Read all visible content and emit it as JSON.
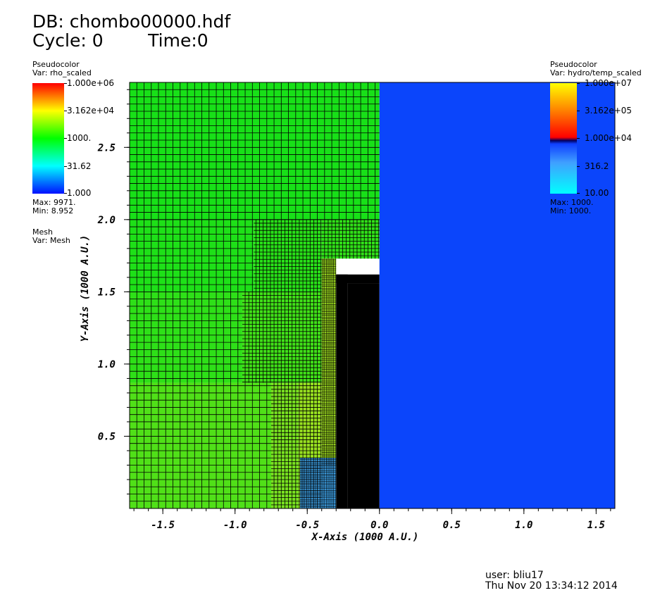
{
  "header": {
    "db_line": "DB: chombo00000.hdf",
    "cycle_line": "Cycle: 0        Time:0"
  },
  "legend_left": {
    "kind": "Pseudocolor",
    "var": "Var: rho_scaled",
    "ticks": [
      "1.000e+06",
      "3.162e+04",
      "1000.",
      "31.62",
      "1.000"
    ],
    "max": "Max: 9971.",
    "min": "Min: 8.952",
    "mesh_kind": "Mesh",
    "mesh_var": "Var: Mesh"
  },
  "legend_right": {
    "kind": "Pseudocolor",
    "var": "Var: hydro/temp_scaled",
    "ticks": [
      "1.000e+07",
      "3.162e+05",
      "1.000e+04",
      "316.2",
      "10.00"
    ],
    "max": "Max: 1000.",
    "min": "Min: 1000."
  },
  "colors": {
    "right_field": "#0b45fb",
    "mesh_line": "#000000",
    "green_top": "#18e018",
    "green_low": "#78e020",
    "yellow_green": "#a8e020",
    "cyan_blue": "#40a8f0"
  },
  "chart_data": {
    "type": "heatmap",
    "x_axis": {
      "title": "X-Axis (1000 A.U.)",
      "range": [
        -1.73,
        1.63
      ],
      "ticks": [
        -1.5,
        -1.0,
        -0.5,
        0.0,
        0.5,
        1.0,
        1.5
      ],
      "tick_labels": [
        "-1.5",
        "-1.0",
        "-0.5",
        "0.0",
        "0.5",
        "1.0",
        "1.5"
      ]
    },
    "y_axis": {
      "title": "Y-Axis (1000 A.U.)",
      "range": [
        0.0,
        2.95
      ],
      "ticks": [
        0.5,
        1.0,
        1.5,
        2.0,
        2.5
      ],
      "tick_labels": [
        "0.5",
        "1.0",
        "1.5",
        "2.0",
        "2.5"
      ]
    },
    "regions": [
      {
        "x0": -1.73,
        "x1": 0.0,
        "y0": 2.0,
        "y1": 2.95,
        "level": 0,
        "color": "#18e018"
      },
      {
        "x0": -1.73,
        "x1": -0.87,
        "y0": 1.5,
        "y1": 2.0,
        "level": 0,
        "color": "#1ee018"
      },
      {
        "x0": -1.73,
        "x1": -0.95,
        "y0": 0.87,
        "y1": 1.5,
        "level": 0,
        "color": "#2ee018"
      },
      {
        "x0": -1.73,
        "x1": -0.75,
        "y0": 0.0,
        "y1": 0.87,
        "level": 0,
        "color": "#50e018"
      },
      {
        "x0": -0.87,
        "x1": -0.4,
        "y0": 1.5,
        "y1": 2.0,
        "level": 1,
        "color": "#28e018"
      },
      {
        "x0": -0.95,
        "x1": -0.4,
        "y0": 0.87,
        "y1": 1.5,
        "level": 1,
        "color": "#40e018"
      },
      {
        "x0": -0.75,
        "x1": -0.56,
        "y0": 0.0,
        "y1": 0.87,
        "level": 1,
        "color": "#78e020"
      },
      {
        "x0": -0.56,
        "x1": -0.4,
        "y0": 0.0,
        "y1": 0.87,
        "level": 1,
        "color": "#98e020"
      },
      {
        "x0": -0.4,
        "x1": 0.0,
        "y0": 1.73,
        "y1": 2.0,
        "level": 1,
        "color": "#30e018"
      },
      {
        "x0": -0.4,
        "x1": -0.3,
        "y0": 0.3,
        "y1": 1.73,
        "level": 2,
        "color": "#a0e020"
      },
      {
        "x0": -0.55,
        "x1": -0.3,
        "y0": 0.0,
        "y1": 0.35,
        "level": 2,
        "color": "#40a8f0"
      },
      {
        "x0": -0.3,
        "x1": -0.22,
        "y0": 0.0,
        "y1": 1.62,
        "level": 3,
        "color": "#000000"
      },
      {
        "x0": -0.22,
        "x1": 0.0,
        "y0": 0.0,
        "y1": 1.56,
        "level": -1,
        "color": "#000000"
      },
      {
        "x0": -0.3,
        "x1": 0.0,
        "y0": 1.56,
        "y1": 1.62,
        "level": 3,
        "color": "#000000"
      },
      {
        "x0": 0.0,
        "x1": 1.63,
        "y0": 0.0,
        "y1": 2.95,
        "level": -1,
        "color": "#0b45fb"
      }
    ]
  },
  "footer": {
    "user": "user: bliu17",
    "date": "Thu Nov 20 13:34:12 2014"
  }
}
